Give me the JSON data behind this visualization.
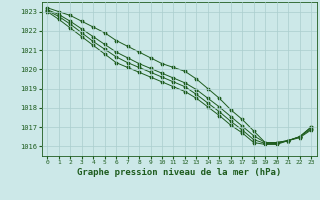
{
  "title": "Graphe pression niveau de la mer (hPa)",
  "xlabel_fontsize": 6.5,
  "bg_color": "#cce8e8",
  "grid_color": "#aacece",
  "line_color": "#1e5c1e",
  "marker_color": "#1e5c1e",
  "xlim": [
    -0.5,
    23.5
  ],
  "ylim": [
    1015.5,
    1023.5
  ],
  "yticks": [
    1016,
    1017,
    1018,
    1019,
    1020,
    1021,
    1022,
    1023
  ],
  "xticks": [
    0,
    1,
    2,
    3,
    4,
    5,
    6,
    7,
    8,
    9,
    10,
    11,
    12,
    13,
    14,
    15,
    16,
    17,
    18,
    19,
    20,
    21,
    22,
    23
  ],
  "line1": [
    1023.2,
    1023.0,
    1022.8,
    1022.5,
    1022.2,
    1021.9,
    1021.5,
    1021.2,
    1020.9,
    1020.6,
    1020.3,
    1020.1,
    1019.9,
    1019.5,
    1019.0,
    1018.5,
    1017.9,
    1017.4,
    1016.8,
    1016.2,
    1016.2,
    1016.3,
    1016.5,
    1017.0
  ],
  "line2": [
    1023.1,
    1022.85,
    1022.5,
    1022.1,
    1021.7,
    1021.3,
    1020.9,
    1020.6,
    1020.3,
    1020.05,
    1019.8,
    1019.55,
    1019.3,
    1018.95,
    1018.5,
    1018.05,
    1017.55,
    1017.05,
    1016.55,
    1016.2,
    1016.2,
    1016.3,
    1016.45,
    1016.85
  ],
  "line3": [
    1023.0,
    1022.6,
    1022.15,
    1021.7,
    1021.25,
    1020.8,
    1020.35,
    1020.1,
    1019.85,
    1019.6,
    1019.35,
    1019.1,
    1018.85,
    1018.5,
    1018.05,
    1017.6,
    1017.1,
    1016.7,
    1016.2,
    1016.1,
    1016.1,
    1016.3,
    1016.5,
    1017.0
  ],
  "line4": [
    1023.05,
    1022.75,
    1022.35,
    1021.9,
    1021.45,
    1021.05,
    1020.65,
    1020.35,
    1020.1,
    1019.85,
    1019.6,
    1019.35,
    1019.1,
    1018.7,
    1018.25,
    1017.8,
    1017.3,
    1016.85,
    1016.35,
    1016.15,
    1016.15,
    1016.3,
    1016.5,
    1016.9
  ]
}
